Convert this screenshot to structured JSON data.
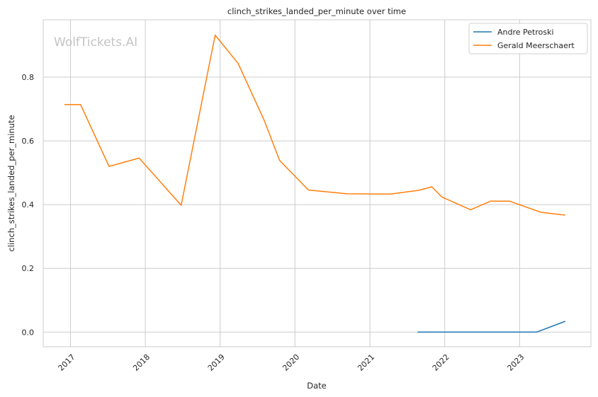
{
  "chart_data": {
    "type": "line",
    "title": "clinch_strikes_landed_per_minute over time",
    "xlabel": "Date",
    "ylabel": "clinch_strikes_landed_per_minute",
    "watermark": "WolfTickets.AI",
    "xlim": [
      "2016-08-21",
      "2023-12-15"
    ],
    "ylim": [
      -0.046,
      0.98
    ],
    "x_ticks": [
      "2017",
      "2018",
      "2019",
      "2020",
      "2021",
      "2022",
      "2023"
    ],
    "y_ticks": [
      "0.0",
      "0.2",
      "0.4",
      "0.6",
      "0.8"
    ],
    "grid": true,
    "legend": "top-right",
    "series": [
      {
        "name": "Andre Petroski",
        "color": "#1f77b4",
        "points": [
          [
            "2021-08-21",
            0.0
          ],
          [
            "2023-03-25",
            0.0
          ],
          [
            "2023-08-12",
            0.034
          ]
        ]
      },
      {
        "name": "Gerald Meerschaert",
        "color": "#ff7f0e",
        "points": [
          [
            "2016-12-03",
            0.714
          ],
          [
            "2017-02-19",
            0.714
          ],
          [
            "2017-07-08",
            0.52
          ],
          [
            "2017-12-02",
            0.546
          ],
          [
            "2018-06-25",
            0.398
          ],
          [
            "2018-12-08",
            0.932
          ],
          [
            "2019-03-30",
            0.843
          ],
          [
            "2019-08-03",
            0.666
          ],
          [
            "2019-10-18",
            0.539
          ],
          [
            "2020-03-07",
            0.446
          ],
          [
            "2020-09-12",
            0.434
          ],
          [
            "2021-04-10",
            0.433
          ],
          [
            "2021-08-28",
            0.445
          ],
          [
            "2021-10-30",
            0.456
          ],
          [
            "2021-12-18",
            0.424
          ],
          [
            "2022-05-07",
            0.384
          ],
          [
            "2022-08-13",
            0.411
          ],
          [
            "2022-11-12",
            0.411
          ],
          [
            "2023-04-15",
            0.376
          ],
          [
            "2023-08-12",
            0.367
          ]
        ]
      }
    ]
  }
}
